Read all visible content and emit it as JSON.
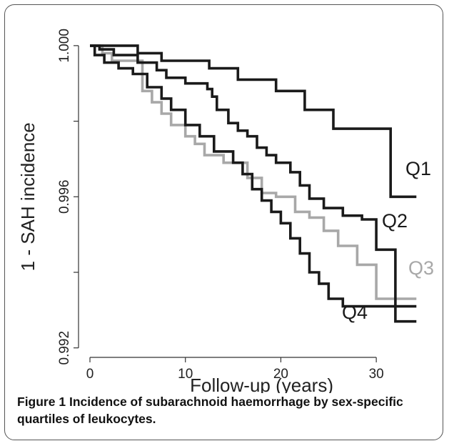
{
  "figure": {
    "caption_label": "Figure 1",
    "caption_text": "Incidence of subarachnoid haemorrhage by sex-specific quartiles of leukocytes."
  },
  "chart_data": {
    "type": "line",
    "step": true,
    "xlabel": "Follow-up (years)",
    "ylabel": "1 - SAH incidence",
    "xlim": [
      0,
      35
    ],
    "ylim": [
      0.9919,
      1.0003
    ],
    "xticks": [
      0,
      10,
      20,
      30
    ],
    "xtick_labels": [
      "0",
      "10",
      "20",
      "30"
    ],
    "yticks": [
      1.0,
      0.996,
      0.992
    ],
    "ytick_labels": [
      "1.000",
      "0.996",
      "0.992"
    ],
    "yticks_minor": [
      0.998,
      0.994
    ],
    "grid": false,
    "legend": "inline labels at line ends",
    "series": [
      {
        "name": "Q1",
        "color": "#1a1a1a",
        "x": [
          0,
          5,
          7.5,
          12.5,
          15.5,
          19.5,
          22.5,
          25.5,
          31.5,
          34.2
        ],
        "y": [
          1.0,
          0.9998,
          0.9996,
          0.9994,
          0.9991,
          0.9988,
          0.9983,
          0.9978,
          0.996,
          0.996
        ]
      },
      {
        "name": "Q2",
        "color": "#1a1a1a",
        "x": [
          0,
          1,
          2.5,
          5,
          7,
          8,
          10,
          12.3,
          12.8,
          13.3,
          14.5,
          15.5,
          16.5,
          17.5,
          18.5,
          19.5,
          21,
          22,
          23,
          24.5,
          26.5,
          28.5,
          30,
          32,
          34.2
        ],
        "y": [
          1.0,
          0.9999,
          0.99975,
          0.99955,
          0.99935,
          0.99915,
          0.999,
          0.99885,
          0.99865,
          0.9983,
          0.99795,
          0.99775,
          0.9976,
          0.9973,
          0.9971,
          0.9969,
          0.99665,
          0.9963,
          0.99595,
          0.9957,
          0.9955,
          0.9954,
          0.9946,
          0.9927,
          0.9927
        ]
      },
      {
        "name": "Q3",
        "color": "#a8a8a8",
        "x": [
          0,
          1.3,
          2.3,
          5.5,
          6.5,
          7.5,
          8.5,
          10,
          11,
          12,
          14,
          16.5,
          18,
          19.5,
          21.5,
          23,
          24.5,
          26,
          28,
          30,
          34.2
        ],
        "y": [
          1.0,
          0.9998,
          0.9996,
          0.9988,
          0.9985,
          0.9982,
          0.9979,
          0.9976,
          0.9974,
          0.9971,
          0.9969,
          0.9965,
          0.9961,
          0.996,
          0.9956,
          0.99545,
          0.9951,
          0.9947,
          0.9942,
          0.9933,
          0.9933
        ]
      },
      {
        "name": "Q4",
        "color": "#1a1a1a",
        "x": [
          0,
          0.5,
          1.5,
          3,
          4.5,
          6,
          7.5,
          8.5,
          10,
          11.5,
          13,
          15,
          16,
          17,
          18,
          19,
          20,
          21,
          22,
          23,
          24,
          25,
          26.5,
          31.5,
          34.2
        ],
        "y": [
          1.0,
          0.99975,
          0.99955,
          0.9994,
          0.99925,
          0.9989,
          0.9986,
          0.9983,
          0.9979,
          0.9976,
          0.9972,
          0.9969,
          0.9966,
          0.9962,
          0.9959,
          0.9956,
          0.9953,
          0.9949,
          0.9945,
          0.994,
          0.9937,
          0.9933,
          0.9931,
          0.9931,
          0.9931
        ]
      }
    ]
  }
}
